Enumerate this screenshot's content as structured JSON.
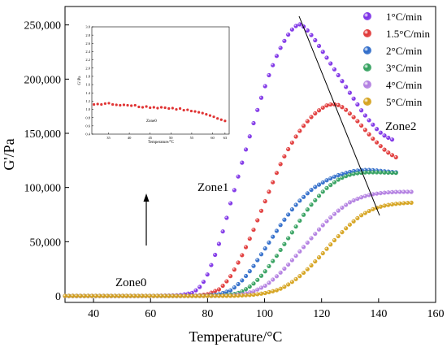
{
  "chart_data": [
    {
      "type": "scatter",
      "xlabel": "Temperature/°C",
      "ylabel": "G'/Pa",
      "xlim": [
        30,
        160
      ],
      "ylim": [
        -6000,
        267000
      ],
      "xticks": [
        40,
        60,
        80,
        100,
        120,
        140,
        160
      ],
      "yticks": [
        0,
        50000,
        100000,
        150000,
        200000,
        250000
      ],
      "ytick_labels": [
        "0",
        "50,000",
        "100,000",
        "150,000",
        "200,000",
        "250,000"
      ],
      "legend_position": "top-right",
      "annotations": [
        "Zone0",
        "Zone1",
        "Zone2"
      ],
      "series": [
        {
          "name": "1°C/min",
          "color": "#7b2ee6",
          "points": [
            [
              30,
              0
            ],
            [
              40,
              0
            ],
            [
              50,
              0
            ],
            [
              60,
              0
            ],
            [
              70,
              500
            ],
            [
              75,
              3000
            ],
            [
              78,
              10000
            ],
            [
              80,
              20000
            ],
            [
              82,
              33000
            ],
            [
              84,
              48000
            ],
            [
              86,
              65000
            ],
            [
              88,
              85000
            ],
            [
              90,
              103000
            ],
            [
              92,
              122000
            ],
            [
              94,
              140000
            ],
            [
              96,
              158000
            ],
            [
              98,
              176000
            ],
            [
              100,
              192000
            ],
            [
              102,
              207000
            ],
            [
              104,
              220000
            ],
            [
              106,
              231000
            ],
            [
              108,
              240000
            ],
            [
              110,
              247000
            ],
            [
              112,
              251000
            ],
            [
              114,
              248000
            ],
            [
              116,
              242000
            ],
            [
              118,
              235000
            ],
            [
              120,
              227000
            ],
            [
              122,
              219000
            ],
            [
              124,
              211000
            ],
            [
              126,
              203000
            ],
            [
              128,
              195000
            ],
            [
              130,
              187000
            ],
            [
              132,
              179000
            ],
            [
              134,
              171000
            ],
            [
              136,
              164000
            ],
            [
              138,
              158000
            ],
            [
              140,
              152000
            ],
            [
              142,
              148000
            ],
            [
              144,
              145000
            ],
            [
              146,
              143000
            ]
          ]
        },
        {
          "name": "1.5°C/min",
          "color": "#e03434",
          "points": [
            [
              30,
              0
            ],
            [
              40,
              0
            ],
            [
              50,
              0
            ],
            [
              60,
              0
            ],
            [
              70,
              0
            ],
            [
              76,
              200
            ],
            [
              80,
              1500
            ],
            [
              84,
              6000
            ],
            [
              86,
              11000
            ],
            [
              88,
              18000
            ],
            [
              90,
              27000
            ],
            [
              92,
              37000
            ],
            [
              94,
              48000
            ],
            [
              96,
              60000
            ],
            [
              98,
              73000
            ],
            [
              100,
              86000
            ],
            [
              102,
              99000
            ],
            [
              104,
              112000
            ],
            [
              106,
              124000
            ],
            [
              108,
              134000
            ],
            [
              110,
              143000
            ],
            [
              112,
              151000
            ],
            [
              114,
              158000
            ],
            [
              116,
              164000
            ],
            [
              118,
              169000
            ],
            [
              120,
              173000
            ],
            [
              122,
              176000
            ],
            [
              124,
              177000
            ],
            [
              126,
              176000
            ],
            [
              128,
              173000
            ],
            [
              130,
              168000
            ],
            [
              132,
              163000
            ],
            [
              134,
              157000
            ],
            [
              136,
              151000
            ],
            [
              138,
              145000
            ],
            [
              140,
              140000
            ],
            [
              142,
              135000
            ],
            [
              144,
              131000
            ],
            [
              146,
              128000
            ],
            [
              147,
              127000
            ]
          ]
        },
        {
          "name": "2°C/min",
          "color": "#2a68c8",
          "points": [
            [
              30,
              0
            ],
            [
              40,
              0
            ],
            [
              50,
              0
            ],
            [
              60,
              0
            ],
            [
              70,
              0
            ],
            [
              80,
              300
            ],
            [
              84,
              1500
            ],
            [
              88,
              5000
            ],
            [
              90,
              9000
            ],
            [
              92,
              14000
            ],
            [
              94,
              20000
            ],
            [
              96,
              27000
            ],
            [
              98,
              35000
            ],
            [
              100,
              43000
            ],
            [
              102,
              51000
            ],
            [
              104,
              59000
            ],
            [
              106,
              67000
            ],
            [
              108,
              74000
            ],
            [
              110,
              81000
            ],
            [
              112,
              87000
            ],
            [
              114,
              92000
            ],
            [
              116,
              97000
            ],
            [
              118,
              101000
            ],
            [
              120,
              104000
            ],
            [
              122,
              107000
            ],
            [
              124,
              109500
            ],
            [
              126,
              111500
            ],
            [
              128,
              113000
            ],
            [
              130,
              114500
            ],
            [
              132,
              115500
            ],
            [
              134,
              116000
            ],
            [
              136,
              116200
            ],
            [
              138,
              116000
            ],
            [
              140,
              115500
            ],
            [
              142,
              115000
            ],
            [
              144,
              114500
            ],
            [
              146,
              114000
            ],
            [
              147,
              114000
            ]
          ]
        },
        {
          "name": "3°C/min",
          "color": "#2e9e5a",
          "points": [
            [
              30,
              0
            ],
            [
              40,
              0
            ],
            [
              50,
              0
            ],
            [
              60,
              0
            ],
            [
              70,
              0
            ],
            [
              80,
              0
            ],
            [
              86,
              400
            ],
            [
              90,
              2000
            ],
            [
              92,
              4000
            ],
            [
              94,
              7000
            ],
            [
              96,
              11000
            ],
            [
              98,
              16000
            ],
            [
              100,
              22000
            ],
            [
              102,
              29000
            ],
            [
              104,
              36000
            ],
            [
              106,
              44000
            ],
            [
              108,
              52000
            ],
            [
              110,
              60000
            ],
            [
              112,
              68000
            ],
            [
              114,
              76000
            ],
            [
              116,
              83000
            ],
            [
              118,
              89000
            ],
            [
              120,
              95000
            ],
            [
              122,
              100000
            ],
            [
              124,
              104000
            ],
            [
              126,
              107500
            ],
            [
              128,
              110000
            ],
            [
              130,
              111800
            ],
            [
              132,
              113000
            ],
            [
              134,
              113600
            ],
            [
              136,
              114000
            ],
            [
              138,
              114000
            ],
            [
              140,
              114000
            ],
            [
              142,
              113800
            ],
            [
              144,
              113600
            ],
            [
              146,
              113500
            ],
            [
              147,
              113500
            ]
          ]
        },
        {
          "name": "4°C/min",
          "color": "#b07be0",
          "points": [
            [
              30,
              0
            ],
            [
              40,
              0
            ],
            [
              50,
              0
            ],
            [
              60,
              0
            ],
            [
              70,
              0
            ],
            [
              80,
              0
            ],
            [
              88,
              300
            ],
            [
              92,
              1500
            ],
            [
              96,
              4000
            ],
            [
              100,
              9000
            ],
            [
              102,
              13000
            ],
            [
              104,
              17500
            ],
            [
              106,
              22500
            ],
            [
              108,
              28000
            ],
            [
              110,
              34000
            ],
            [
              112,
              40000
            ],
            [
              114,
              46000
            ],
            [
              116,
              52000
            ],
            [
              118,
              58000
            ],
            [
              120,
              64000
            ],
            [
              122,
              69500
            ],
            [
              124,
              74500
            ],
            [
              126,
              79000
            ],
            [
              128,
              83000
            ],
            [
              130,
              86500
            ],
            [
              132,
              89000
            ],
            [
              134,
              91000
            ],
            [
              136,
              92700
            ],
            [
              138,
              93800
            ],
            [
              140,
              94600
            ],
            [
              142,
              95200
            ],
            [
              144,
              95600
            ],
            [
              146,
              95900
            ],
            [
              148,
              96000
            ],
            [
              150,
              96000
            ],
            [
              152,
              96000
            ]
          ]
        },
        {
          "name": "5°C/min",
          "color": "#d4a017",
          "points": [
            [
              30,
              0
            ],
            [
              40,
              0
            ],
            [
              50,
              0
            ],
            [
              60,
              0
            ],
            [
              70,
              0
            ],
            [
              80,
              0
            ],
            [
              90,
              100
            ],
            [
              96,
              1000
            ],
            [
              100,
              2500
            ],
            [
              104,
              5000
            ],
            [
              106,
              7000
            ],
            [
              108,
              10000
            ],
            [
              110,
              13500
            ],
            [
              112,
              17500
            ],
            [
              114,
              22000
            ],
            [
              116,
              27000
            ],
            [
              118,
              32500
            ],
            [
              120,
              38000
            ],
            [
              122,
              44000
            ],
            [
              124,
              50000
            ],
            [
              126,
              55500
            ],
            [
              128,
              61000
            ],
            [
              130,
              66000
            ],
            [
              132,
              70500
            ],
            [
              134,
              74500
            ],
            [
              136,
              77500
            ],
            [
              138,
              80000
            ],
            [
              140,
              81800
            ],
            [
              142,
              83200
            ],
            [
              144,
              84200
            ],
            [
              146,
              84900
            ],
            [
              148,
              85400
            ],
            [
              150,
              85800
            ],
            [
              152,
              86000
            ]
          ]
        }
      ]
    },
    {
      "type": "scatter",
      "xlabel": "Temperature/°C",
      "ylabel": "G'/Pa",
      "xlim": [
        31,
        64
      ],
      "ylim": [
        0.4,
        3.0
      ],
      "xticks": [
        35,
        40,
        45,
        50,
        55,
        60,
        63
      ],
      "yticks": [
        0.4,
        0.6,
        0.8,
        1.0,
        1.2,
        1.4,
        1.6,
        1.8,
        2.0,
        2.2,
        2.4,
        2.6,
        2.8,
        3.0
      ],
      "ytick_labels": [
        "0.4",
        "0.6",
        "0.8",
        "1.0",
        "1.2",
        "1.4",
        "1.6",
        "1.8",
        "2.0",
        "2.2",
        "2.4",
        "2.6",
        "2.8",
        "3.0"
      ],
      "annotations": [
        "Zone0"
      ],
      "series": [
        {
          "color": "#e03434",
          "points": [
            [
              31.5,
              1.12
            ],
            [
              32.4,
              1.13
            ],
            [
              33.3,
              1.12
            ],
            [
              34.2,
              1.14
            ],
            [
              35.1,
              1.15
            ],
            [
              36.0,
              1.12
            ],
            [
              36.9,
              1.11
            ],
            [
              37.8,
              1.1
            ],
            [
              38.7,
              1.11
            ],
            [
              39.6,
              1.1
            ],
            [
              40.5,
              1.09
            ],
            [
              41.4,
              1.1
            ],
            [
              42.3,
              1.06
            ],
            [
              43.2,
              1.05
            ],
            [
              44.1,
              1.07
            ],
            [
              45.0,
              1.04
            ],
            [
              45.9,
              1.05
            ],
            [
              46.8,
              1.03
            ],
            [
              47.7,
              1.05
            ],
            [
              48.6,
              1.04
            ],
            [
              49.5,
              1.02
            ],
            [
              50.4,
              1.03
            ],
            [
              51.3,
              1.0
            ],
            [
              52.2,
              1.02
            ],
            [
              53.1,
              0.98
            ],
            [
              54.0,
              0.99
            ],
            [
              54.9,
              0.96
            ],
            [
              55.8,
              0.95
            ],
            [
              56.7,
              0.93
            ],
            [
              57.6,
              0.91
            ],
            [
              58.5,
              0.88
            ],
            [
              59.4,
              0.85
            ],
            [
              60.3,
              0.82
            ],
            [
              61.2,
              0.78
            ],
            [
              62.1,
              0.75
            ],
            [
              63.0,
              0.72
            ]
          ]
        }
      ]
    }
  ]
}
